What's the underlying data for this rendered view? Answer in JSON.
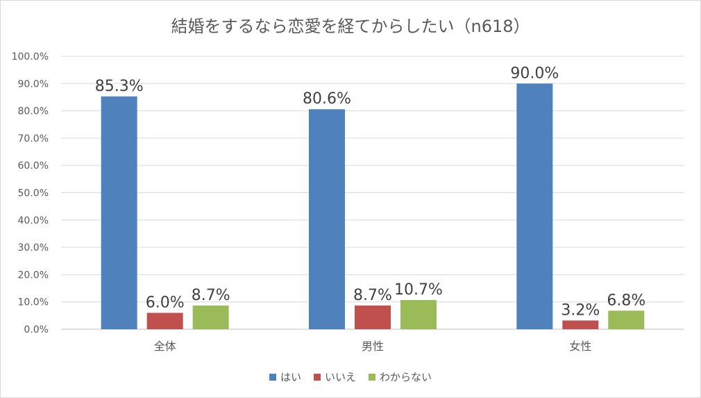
{
  "chart_data": {
    "type": "bar",
    "title": "結婚をするなら恋愛を経てからしたい（n618）",
    "categories": [
      "全体",
      "男性",
      "女性"
    ],
    "series": [
      {
        "name": "はい",
        "values": [
          85.3,
          80.6,
          90.0
        ],
        "color": "#4f81bd"
      },
      {
        "name": "いいえ",
        "values": [
          6.0,
          8.7,
          3.2
        ],
        "color": "#c0504d"
      },
      {
        "name": "わからない",
        "values": [
          8.7,
          10.7,
          6.8
        ],
        "color": "#9bbb59"
      }
    ],
    "ylim": [
      0,
      100
    ],
    "y_ticks": [
      "0.0%",
      "10.0%",
      "20.0%",
      "30.0%",
      "40.0%",
      "50.0%",
      "60.0%",
      "70.0%",
      "80.0%",
      "90.0%",
      "100.0%"
    ],
    "value_format": "percent_1dp",
    "grid": true,
    "legend_position": "bottom"
  }
}
